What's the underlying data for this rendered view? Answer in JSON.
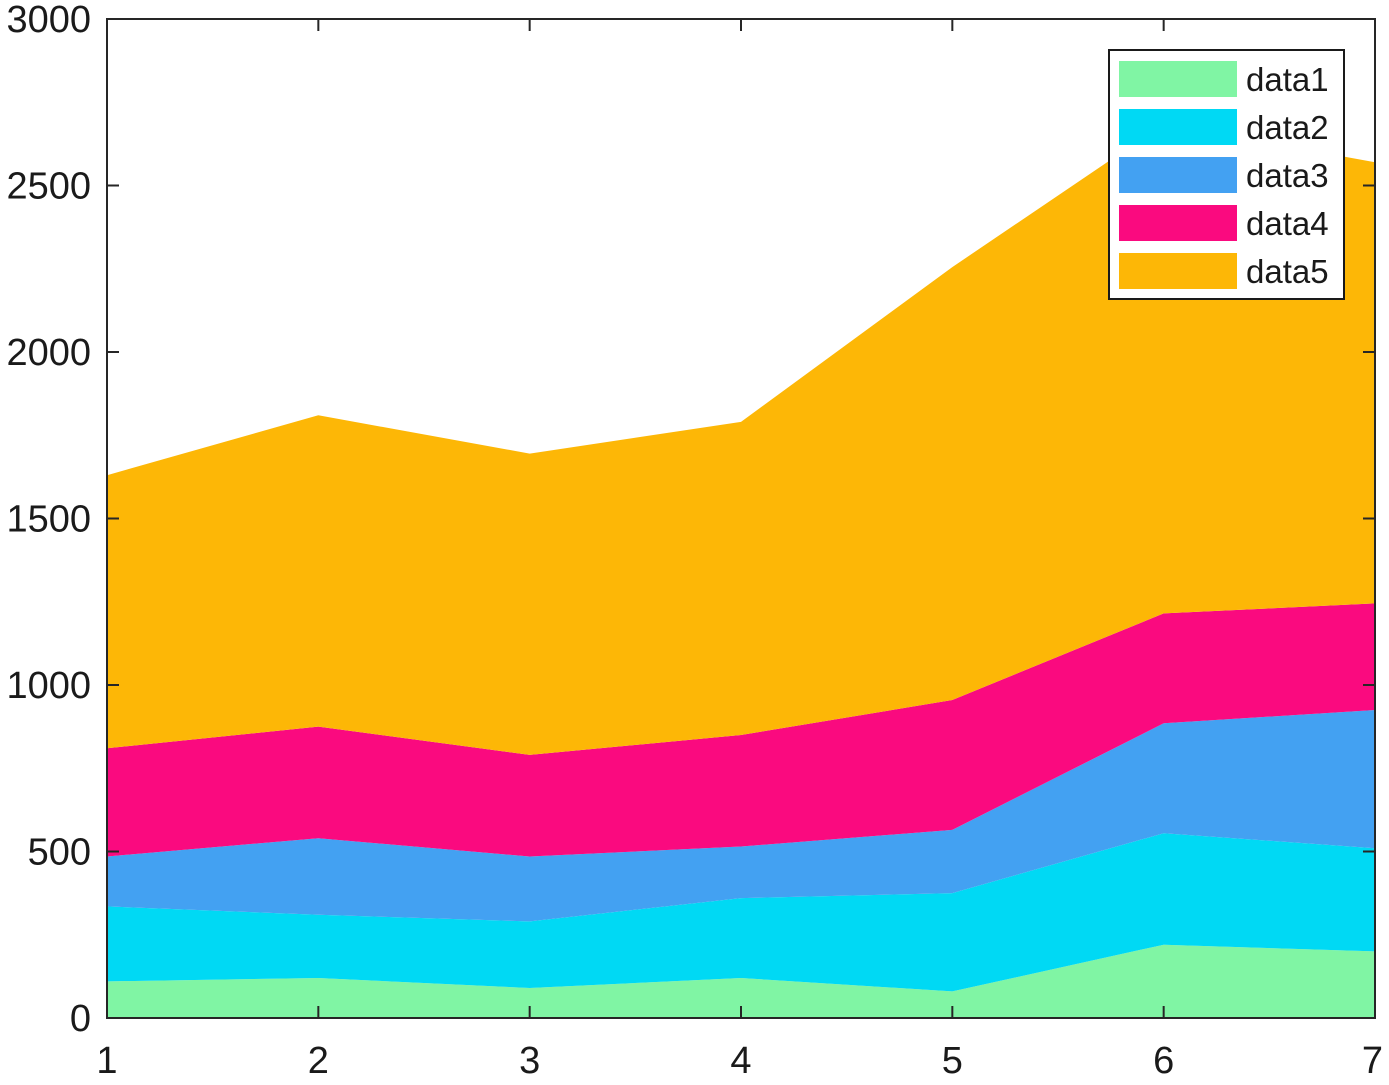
{
  "chart_data": {
    "type": "area",
    "stacked": true,
    "title": "",
    "xlabel": "",
    "ylabel": "",
    "x": [
      1,
      2,
      3,
      4,
      5,
      6,
      7
    ],
    "xlim": [
      1,
      7
    ],
    "ylim": [
      0,
      3000
    ],
    "xticks": [
      1,
      2,
      3,
      4,
      5,
      6,
      7
    ],
    "yticks": [
      0,
      500,
      1000,
      1500,
      2000,
      2500,
      3000
    ],
    "grid": false,
    "legend_position": "top-right",
    "series": [
      {
        "name": "data1",
        "color": "#80f5a4",
        "values": [
          110,
          120,
          90,
          120,
          80,
          220,
          200
        ]
      },
      {
        "name": "data2",
        "color": "#00d9f4",
        "values": [
          225,
          190,
          200,
          240,
          295,
          335,
          310
        ]
      },
      {
        "name": "data3",
        "color": "#43a1f2",
        "values": [
          150,
          230,
          195,
          155,
          190,
          330,
          415
        ]
      },
      {
        "name": "data4",
        "color": "#fa0a7f",
        "values": [
          325,
          335,
          305,
          335,
          390,
          330,
          320
        ]
      },
      {
        "name": "data5",
        "color": "#fdb706",
        "values": [
          820,
          935,
          905,
          940,
          1300,
          1470,
          1325
        ]
      }
    ]
  }
}
